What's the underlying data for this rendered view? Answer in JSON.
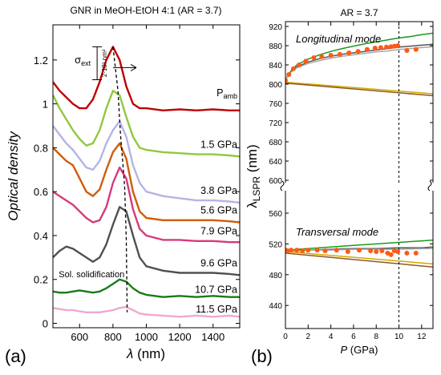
{
  "chart_data": [
    {
      "type": "line",
      "panel_label": "(a)",
      "title": "GNR in MeOH-EtOH 4:1 (AR = 3.7)",
      "xlabel_symbol": "λ",
      "xlabel_unit": " (nm)",
      "ylabel": "Optical density",
      "xlim": [
        440,
        1560
      ],
      "ylim": [
        -0.02,
        1.36
      ],
      "x_ticks": [
        600,
        800,
        1000,
        1200,
        1400
      ],
      "y_ticks": [
        0,
        0.2,
        0.4,
        0.6,
        0.8,
        1,
        1.2
      ],
      "y_tick_labels": [
        "0",
        "0.2",
        "0.4",
        "0.6",
        "0.8",
        "1",
        "1.2"
      ],
      "scalebar": {
        "symbol": "σ",
        "subscript": "ext",
        "label": "2·10³ nm²",
        "from": 1.11,
        "to": 1.26
      },
      "annotation": "Sol. solidification",
      "peak_trace": {
        "x": [
          800,
          830,
          845,
          860,
          870,
          880,
          885
        ],
        "y": [
          1.26,
          1.06,
          0.86,
          0.72,
          0.62,
          0.38,
          0.05
        ]
      },
      "series": [
        {
          "name": "P",
          "name_sub": "amb",
          "color": "#c00000",
          "x": [
            440,
            480,
            520,
            560,
            600,
            640,
            680,
            720,
            760,
            800,
            840,
            880,
            920,
            960,
            1000,
            1100,
            1200,
            1300,
            1400,
            1500,
            1560
          ],
          "y": [
            1.1,
            1.06,
            1.03,
            1.0,
            0.98,
            0.98,
            1.02,
            1.1,
            1.2,
            1.26,
            1.2,
            1.08,
            1.0,
            0.98,
            0.98,
            0.97,
            0.975,
            0.97,
            0.975,
            0.97,
            0.97
          ]
        },
        {
          "name": "1.5 GPa",
          "color": "#92c83e",
          "x": [
            440,
            480,
            520,
            560,
            600,
            640,
            680,
            720,
            760,
            800,
            840,
            880,
            920,
            960,
            1000,
            1100,
            1200,
            1300,
            1400,
            1500,
            1560
          ],
          "y": [
            1.04,
            0.98,
            0.93,
            0.88,
            0.84,
            0.81,
            0.82,
            0.88,
            0.98,
            1.06,
            1.04,
            0.94,
            0.85,
            0.8,
            0.79,
            0.78,
            0.775,
            0.77,
            0.77,
            0.765,
            0.76
          ]
        },
        {
          "name": "3.8 GPa",
          "color": "#b4b4e6",
          "x": [
            440,
            480,
            520,
            560,
            600,
            640,
            680,
            720,
            760,
            800,
            840,
            880,
            920,
            960,
            1000,
            1100,
            1200,
            1300,
            1400,
            1500,
            1560
          ],
          "y": [
            0.9,
            0.86,
            0.82,
            0.79,
            0.75,
            0.71,
            0.7,
            0.74,
            0.82,
            0.88,
            0.92,
            0.85,
            0.72,
            0.64,
            0.6,
            0.58,
            0.57,
            0.56,
            0.56,
            0.555,
            0.55
          ]
        },
        {
          "name": "5.6 GPa",
          "color": "#d05c0a",
          "x": [
            440,
            480,
            520,
            560,
            600,
            640,
            680,
            720,
            760,
            800,
            840,
            880,
            920,
            960,
            1000,
            1100,
            1200,
            1300,
            1400,
            1500,
            1560
          ],
          "y": [
            0.8,
            0.77,
            0.74,
            0.72,
            0.66,
            0.6,
            0.58,
            0.61,
            0.7,
            0.78,
            0.82,
            0.75,
            0.6,
            0.51,
            0.48,
            0.47,
            0.47,
            0.47,
            0.47,
            0.465,
            0.46
          ]
        },
        {
          "name": "7.9 GPa",
          "color": "#d63a7c",
          "x": [
            440,
            480,
            520,
            560,
            600,
            640,
            680,
            720,
            760,
            800,
            840,
            880,
            920,
            960,
            1000,
            1100,
            1200,
            1300,
            1400,
            1500,
            1560
          ],
          "y": [
            0.6,
            0.58,
            0.56,
            0.54,
            0.51,
            0.48,
            0.46,
            0.47,
            0.53,
            0.64,
            0.71,
            0.66,
            0.52,
            0.43,
            0.4,
            0.38,
            0.38,
            0.375,
            0.375,
            0.37,
            0.37
          ]
        },
        {
          "name": "9.6 GPa",
          "color": "#505050",
          "x": [
            440,
            480,
            520,
            560,
            600,
            640,
            680,
            720,
            760,
            800,
            840,
            880,
            920,
            960,
            1000,
            1100,
            1200,
            1300,
            1400,
            1500,
            1560
          ],
          "y": [
            0.3,
            0.33,
            0.35,
            0.34,
            0.32,
            0.3,
            0.28,
            0.3,
            0.36,
            0.45,
            0.53,
            0.51,
            0.4,
            0.3,
            0.26,
            0.24,
            0.23,
            0.23,
            0.23,
            0.225,
            0.22
          ]
        },
        {
          "name": "10.7 GPa",
          "color": "#1a7a1a",
          "x": [
            440,
            480,
            520,
            560,
            600,
            640,
            680,
            720,
            760,
            800,
            840,
            880,
            920,
            960,
            1000,
            1100,
            1200,
            1300,
            1400,
            1500,
            1560
          ],
          "y": [
            0.145,
            0.14,
            0.14,
            0.145,
            0.15,
            0.145,
            0.14,
            0.145,
            0.16,
            0.18,
            0.2,
            0.19,
            0.16,
            0.14,
            0.13,
            0.12,
            0.125,
            0.12,
            0.125,
            0.12,
            0.12
          ]
        },
        {
          "name": "11.5 GPa",
          "color": "#f0a8cc",
          "x": [
            440,
            480,
            520,
            560,
            600,
            640,
            680,
            720,
            760,
            800,
            840,
            880,
            920,
            960,
            1000,
            1100,
            1200,
            1300,
            1400,
            1500,
            1560
          ],
          "y": [
            0.07,
            0.065,
            0.06,
            0.06,
            0.055,
            0.05,
            0.05,
            0.05,
            0.055,
            0.06,
            0.07,
            0.075,
            0.06,
            0.045,
            0.04,
            0.035,
            0.03,
            0.035,
            0.03,
            0.035,
            0.03
          ]
        }
      ]
    },
    {
      "type": "scatter",
      "panel_label": "(b)",
      "title": "AR = 3.7",
      "xlabel_symbol": "P",
      "xlabel_unit": " (GPa)",
      "ylabel": "λ",
      "ylabel_sub": "LSPR",
      "ylabel_unit": " (nm)",
      "xlim": [
        0,
        13
      ],
      "x_ticks": [
        0,
        2,
        4,
        6,
        8,
        10,
        12
      ],
      "y_ticks_upper": [
        600,
        640,
        680,
        720,
        760,
        800,
        840,
        880,
        920
      ],
      "y_ticks_lower": [
        440,
        480,
        520,
        560
      ],
      "ylim_upper": [
        600,
        930
      ],
      "ylim_lower": [
        410,
        585
      ],
      "axis_break": true,
      "vline_x": 10,
      "annotations": [
        "Longitudinal mode",
        "Transversal mode"
      ],
      "points_longitudinal": {
        "color": "#ff5a14",
        "x": [
          0.0,
          0.3,
          0.7,
          1.2,
          1.8,
          2.5,
          3.2,
          4.0,
          4.8,
          5.6,
          6.4,
          7.2,
          7.9,
          8.4,
          8.9,
          9.3,
          9.6,
          9.9,
          10.7,
          11.5
        ],
        "y": [
          808,
          820,
          832,
          840,
          848,
          855,
          857,
          860,
          862,
          865,
          868,
          872,
          875,
          876,
          877,
          878,
          879,
          880,
          870,
          872
        ]
      },
      "points_transversal": {
        "color": "#ff5a14",
        "x": [
          0.0,
          0.2,
          0.5,
          1.0,
          1.5,
          2.0,
          2.8,
          3.5,
          4.5,
          5.5,
          6.5,
          7.5,
          8.0,
          8.5,
          9.0,
          9.3,
          9.6,
          9.9,
          10.7,
          11.5
        ],
        "y": [
          512,
          511,
          512,
          512,
          511,
          512,
          512,
          511,
          512,
          510,
          512,
          511,
          510,
          511,
          508,
          506,
          511,
          510,
          508,
          508
        ]
      },
      "curves": [
        {
          "color": "#1a9a1a",
          "x": [
            0,
            0.5,
            1,
            2,
            3,
            4,
            5,
            6,
            7,
            8,
            9,
            10,
            11,
            12,
            13
          ],
          "y": [
            810,
            828,
            840,
            852,
            861,
            868,
            874,
            879,
            884,
            888,
            892,
            896,
            899,
            903,
            906
          ]
        },
        {
          "color": "#555555",
          "x": [
            0,
            0.5,
            1,
            2,
            3,
            4,
            5,
            6,
            7,
            8,
            9,
            10,
            11,
            12,
            13
          ],
          "y": [
            810,
            826,
            836,
            846,
            853,
            858,
            862,
            865,
            868,
            871,
            874,
            877,
            879,
            881,
            883
          ]
        },
        {
          "color": "#a8a8a8",
          "x": [
            0,
            0.5,
            1,
            2,
            3,
            4,
            5,
            6,
            7,
            8,
            9,
            10,
            11,
            12,
            13
          ],
          "y": [
            810,
            825,
            834,
            843,
            849,
            854,
            858,
            861,
            864,
            867,
            869,
            872,
            874,
            876,
            878
          ]
        },
        {
          "color": "#d4a800",
          "x": [
            0,
            13
          ],
          "y": [
            804,
            780
          ]
        },
        {
          "color": "#8a5a20",
          "x": [
            0,
            13
          ],
          "y": [
            802,
            776
          ]
        },
        {
          "color": "#1a9a1a",
          "x": [
            0,
            1,
            2,
            4,
            6,
            8,
            10,
            12,
            13
          ],
          "y": [
            511,
            513,
            514,
            516,
            518,
            520,
            522,
            524,
            525
          ]
        },
        {
          "color": "#555555",
          "x": [
            0,
            1,
            2,
            4,
            6,
            8,
            10,
            12,
            13
          ],
          "y": [
            511,
            512,
            512,
            513,
            514,
            514,
            515,
            515,
            516
          ]
        },
        {
          "color": "#a8a8a8",
          "x": [
            0,
            1,
            2,
            4,
            6,
            8,
            10,
            12,
            13
          ],
          "y": [
            511,
            511,
            512,
            512,
            513,
            513,
            513,
            514,
            514
          ]
        },
        {
          "color": "#d4a800",
          "x": [
            0,
            13
          ],
          "y": [
            510,
            494
          ]
        },
        {
          "color": "#8a5a20",
          "x": [
            0,
            13
          ],
          "y": [
            508,
            490
          ]
        }
      ]
    }
  ]
}
